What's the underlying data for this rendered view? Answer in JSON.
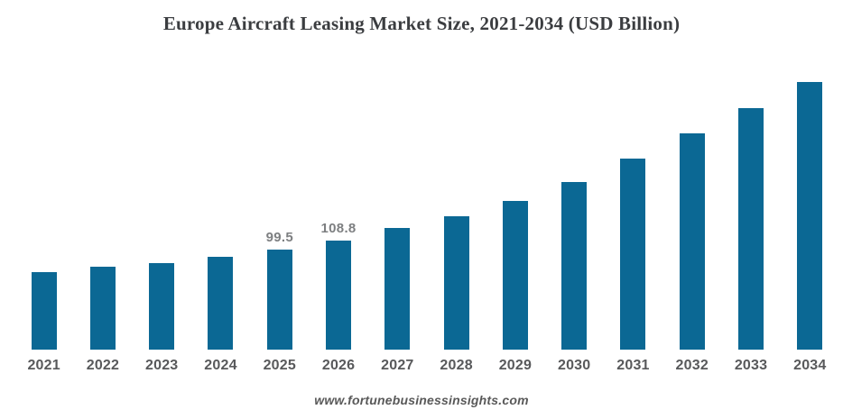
{
  "header": {
    "title": "Europe Aircraft Leasing Market Size, 2021-2034 (USD Billion)"
  },
  "footer": {
    "source_text": "www.fortunebusinessinsights.com"
  },
  "colors": {
    "bar": "#0b6894",
    "title_text": "#3b3d40",
    "axis_label": "#58595b",
    "data_label": "#7d7f81",
    "footer_text": "#595959",
    "background": "#ffffff"
  },
  "chart_data": {
    "type": "bar",
    "title": "Europe Aircraft Leasing Market Size, 2021-2034 (USD Billion)",
    "categories": [
      "2021",
      "2022",
      "2023",
      "2024",
      "2025",
      "2026",
      "2027",
      "2028",
      "2029",
      "2030",
      "2031",
      "2032",
      "2033",
      "2034"
    ],
    "values": [
      77.1,
      82.5,
      86.1,
      92.4,
      99.5,
      108.8,
      121.1,
      132.8,
      148.0,
      166.8,
      190.2,
      215.3,
      240.4,
      266.4
    ],
    "data_labels": [
      "",
      "",
      "",
      "",
      "99.5",
      "108.8",
      "",
      "",
      "",
      "",
      "",
      "",
      "",
      ""
    ],
    "xlabel": "",
    "ylabel": "",
    "unit": "USD Billion",
    "ylim": [
      0,
      280
    ],
    "grid": false,
    "legend": false,
    "axis_lines_visible": false
  }
}
